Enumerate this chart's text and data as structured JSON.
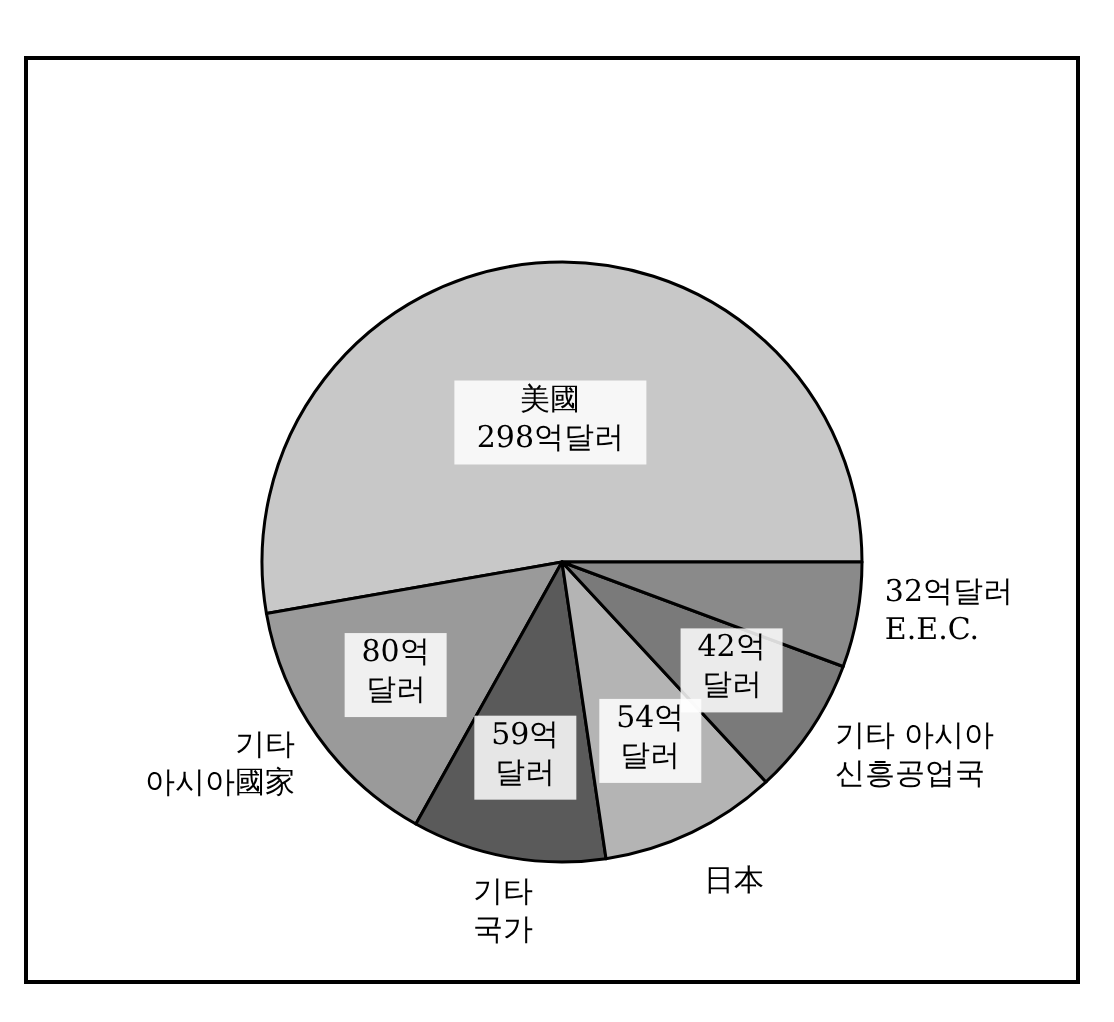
{
  "chart_data": {
    "type": "pie",
    "categories": [
      "美國",
      "기타 아시아國家",
      "기타 국가",
      "日本",
      "기타 아시아 신흥공업국",
      "E.E.C."
    ],
    "values": [
      298,
      80,
      59,
      54,
      42,
      32
    ],
    "value_labels": [
      "298억달러",
      "80억달러",
      "59억달러",
      "54억달러",
      "42억달러",
      "32억달러"
    ],
    "colors": [
      "#c8c8c8",
      "#9a9a9a",
      "#5a5a5a",
      "#b4b4b4",
      "#7a7a7a",
      "#8a8a8a"
    ],
    "legend": false
  }
}
